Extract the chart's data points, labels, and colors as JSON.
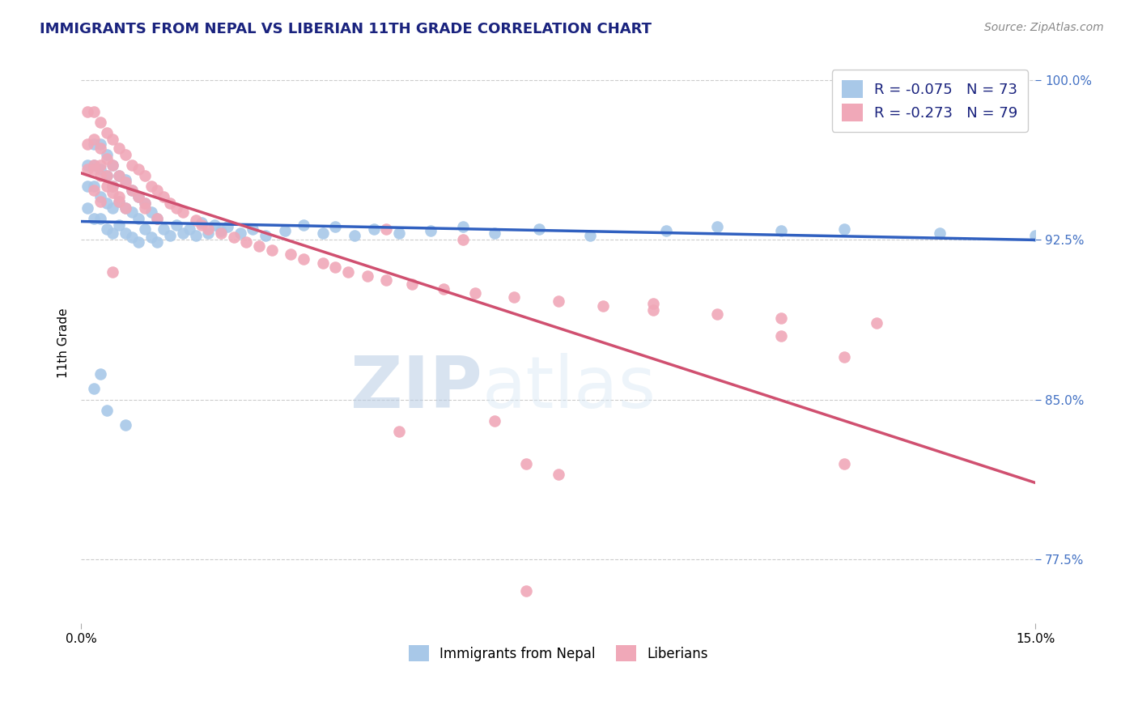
{
  "title": "IMMIGRANTS FROM NEPAL VS LIBERIAN 11TH GRADE CORRELATION CHART",
  "source": "Source: ZipAtlas.com",
  "ylabel": "11th Grade",
  "xlim": [
    0.0,
    0.15
  ],
  "ylim": [
    0.745,
    1.008
  ],
  "yticks": [
    0.775,
    0.85,
    0.925,
    1.0
  ],
  "ytick_labels": [
    "77.5%",
    "85.0%",
    "92.5%",
    "100.0%"
  ],
  "color_nepal": "#a8c8e8",
  "color_liberia": "#f0a8b8",
  "line_color_nepal": "#3060c0",
  "line_color_liberia": "#d05070",
  "watermark_zip": "ZIP",
  "watermark_atlas": "atlas",
  "nepal_x": [
    0.001,
    0.001,
    0.001,
    0.002,
    0.002,
    0.002,
    0.002,
    0.003,
    0.003,
    0.003,
    0.003,
    0.004,
    0.004,
    0.004,
    0.004,
    0.005,
    0.005,
    0.005,
    0.005,
    0.006,
    0.006,
    0.006,
    0.007,
    0.007,
    0.007,
    0.008,
    0.008,
    0.008,
    0.009,
    0.009,
    0.009,
    0.01,
    0.01,
    0.011,
    0.011,
    0.012,
    0.012,
    0.013,
    0.014,
    0.015,
    0.016,
    0.017,
    0.018,
    0.019,
    0.02,
    0.021,
    0.022,
    0.023,
    0.025,
    0.027,
    0.029,
    0.032,
    0.035,
    0.038,
    0.04,
    0.043,
    0.046,
    0.05,
    0.055,
    0.06,
    0.065,
    0.072,
    0.08,
    0.092,
    0.1,
    0.11,
    0.12,
    0.135,
    0.15,
    0.002,
    0.003,
    0.004,
    0.007
  ],
  "nepal_y": [
    0.96,
    0.95,
    0.94,
    0.97,
    0.96,
    0.95,
    0.935,
    0.97,
    0.958,
    0.945,
    0.935,
    0.965,
    0.955,
    0.942,
    0.93,
    0.96,
    0.95,
    0.94,
    0.928,
    0.955,
    0.943,
    0.932,
    0.953,
    0.94,
    0.928,
    0.948,
    0.938,
    0.926,
    0.945,
    0.935,
    0.924,
    0.942,
    0.93,
    0.938,
    0.926,
    0.935,
    0.924,
    0.93,
    0.927,
    0.932,
    0.928,
    0.93,
    0.927,
    0.933,
    0.928,
    0.932,
    0.929,
    0.931,
    0.928,
    0.93,
    0.927,
    0.929,
    0.932,
    0.928,
    0.931,
    0.927,
    0.93,
    0.928,
    0.929,
    0.931,
    0.928,
    0.93,
    0.927,
    0.929,
    0.931,
    0.929,
    0.93,
    0.928,
    0.927,
    0.855,
    0.862,
    0.845,
    0.838
  ],
  "liberia_x": [
    0.001,
    0.001,
    0.001,
    0.002,
    0.002,
    0.002,
    0.002,
    0.003,
    0.003,
    0.003,
    0.003,
    0.004,
    0.004,
    0.004,
    0.005,
    0.005,
    0.005,
    0.006,
    0.006,
    0.006,
    0.007,
    0.007,
    0.007,
    0.008,
    0.008,
    0.009,
    0.009,
    0.01,
    0.01,
    0.011,
    0.012,
    0.013,
    0.014,
    0.015,
    0.016,
    0.018,
    0.019,
    0.02,
    0.022,
    0.024,
    0.026,
    0.028,
    0.03,
    0.033,
    0.035,
    0.038,
    0.04,
    0.042,
    0.045,
    0.048,
    0.052,
    0.057,
    0.062,
    0.068,
    0.075,
    0.082,
    0.09,
    0.1,
    0.11,
    0.125,
    0.002,
    0.003,
    0.004,
    0.005,
    0.006,
    0.048,
    0.06,
    0.09,
    0.11,
    0.12,
    0.07,
    0.005,
    0.01,
    0.012,
    0.12,
    0.075,
    0.05,
    0.065,
    0.07
  ],
  "liberia_y": [
    0.985,
    0.97,
    0.958,
    0.985,
    0.972,
    0.96,
    0.948,
    0.98,
    0.968,
    0.955,
    0.943,
    0.975,
    0.963,
    0.95,
    0.972,
    0.96,
    0.947,
    0.968,
    0.955,
    0.943,
    0.965,
    0.952,
    0.94,
    0.96,
    0.948,
    0.958,
    0.945,
    0.955,
    0.942,
    0.95,
    0.948,
    0.945,
    0.942,
    0.94,
    0.938,
    0.934,
    0.932,
    0.93,
    0.928,
    0.926,
    0.924,
    0.922,
    0.92,
    0.918,
    0.916,
    0.914,
    0.912,
    0.91,
    0.908,
    0.906,
    0.904,
    0.902,
    0.9,
    0.898,
    0.896,
    0.894,
    0.892,
    0.89,
    0.888,
    0.886,
    0.958,
    0.96,
    0.955,
    0.95,
    0.945,
    0.93,
    0.925,
    0.895,
    0.88,
    0.87,
    0.82,
    0.91,
    0.94,
    0.935,
    0.82,
    0.815,
    0.835,
    0.84,
    0.76
  ]
}
